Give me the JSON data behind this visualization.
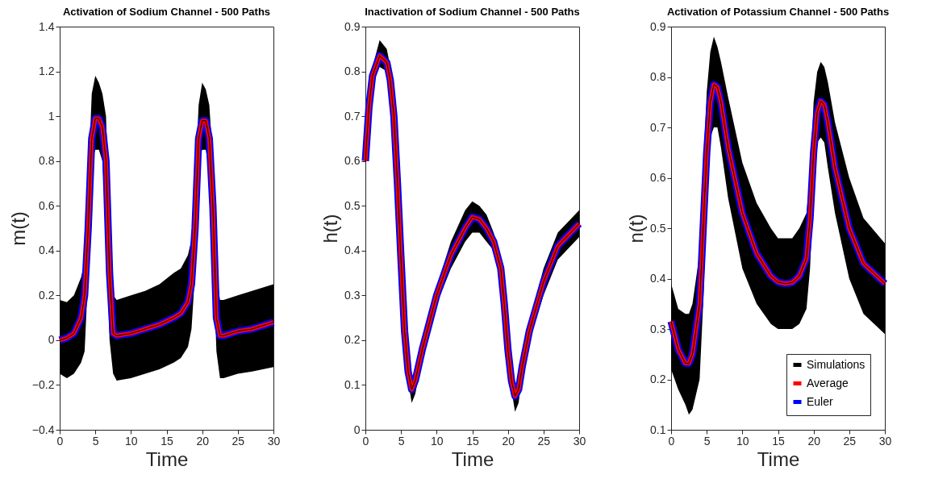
{
  "chart_data": [
    {
      "type": "line",
      "title": "Activation of Sodium Channel - 500 Paths",
      "xlabel": "Time",
      "ylabel": "m(t)",
      "x": [
        0,
        1,
        2,
        3,
        3.5,
        4,
        4.5,
        5,
        5.5,
        6,
        6.5,
        7,
        7.5,
        8,
        10,
        12,
        14,
        16,
        17,
        18,
        18.5,
        19,
        19.5,
        20,
        20.5,
        21,
        21.5,
        22,
        22.5,
        23,
        25,
        27,
        30
      ],
      "xlim": [
        0,
        30
      ],
      "xticks": [
        0,
        5,
        10,
        15,
        20,
        25,
        30
      ],
      "ylim": [
        -0.4,
        1.4
      ],
      "yticks": [
        -0.4,
        -0.2,
        0,
        0.2,
        0.4,
        0.6,
        0.8,
        1,
        1.2,
        1.4
      ],
      "grid": false,
      "legend": false,
      "series": [
        {
          "color": "#000000",
          "values": [
            0,
            0.01,
            0.03,
            0.1,
            0.2,
            0.5,
            0.9,
            0.99,
            0.99,
            0.95,
            0.8,
            0.3,
            0.03,
            0.02,
            0.03,
            0.05,
            0.07,
            0.1,
            0.12,
            0.17,
            0.25,
            0.5,
            0.9,
            0.98,
            0.98,
            0.9,
            0.6,
            0.1,
            0.02,
            0.02,
            0.04,
            0.05,
            0.08
          ],
          "lower": [
            -0.15,
            -0.17,
            -0.15,
            -0.1,
            -0.05,
            0.3,
            0.8,
            0.85,
            0.85,
            0.8,
            0.5,
            0,
            -0.15,
            -0.18,
            -0.17,
            -0.15,
            -0.13,
            -0.1,
            -0.08,
            -0.03,
            0.05,
            0.3,
            0.8,
            0.85,
            0.85,
            0.75,
            0.4,
            -0.05,
            -0.17,
            -0.17,
            -0.15,
            -0.14,
            -0.12
          ],
          "upper": [
            0.18,
            0.17,
            0.2,
            0.28,
            0.35,
            0.7,
            1.1,
            1.18,
            1.15,
            1.1,
            1,
            0.5,
            0.2,
            0.18,
            0.2,
            0.22,
            0.25,
            0.3,
            0.32,
            0.38,
            0.45,
            0.7,
            1.05,
            1.15,
            1.12,
            1.05,
            0.8,
            0.3,
            0.18,
            0.18,
            0.2,
            0.22,
            0.25
          ]
        },
        {
          "color": "#ff0000",
          "values": [
            0,
            0.01,
            0.03,
            0.1,
            0.2,
            0.5,
            0.9,
            0.99,
            0.99,
            0.95,
            0.8,
            0.3,
            0.03,
            0.02,
            0.03,
            0.05,
            0.07,
            0.1,
            0.12,
            0.17,
            0.25,
            0.5,
            0.9,
            0.98,
            0.98,
            0.9,
            0.6,
            0.1,
            0.02,
            0.02,
            0.04,
            0.05,
            0.08
          ]
        },
        {
          "color": "#0000ff",
          "values": [
            0,
            0.01,
            0.03,
            0.1,
            0.2,
            0.5,
            0.9,
            0.99,
            0.99,
            0.95,
            0.8,
            0.3,
            0.03,
            0.02,
            0.03,
            0.05,
            0.07,
            0.1,
            0.12,
            0.17,
            0.25,
            0.5,
            0.9,
            0.98,
            0.98,
            0.9,
            0.6,
            0.1,
            0.02,
            0.02,
            0.04,
            0.05,
            0.08
          ]
        }
      ]
    },
    {
      "type": "line",
      "title": "Inactivation of Sodium Channel - 500 Paths",
      "xlabel": "Time",
      "ylabel": "h(t)",
      "x": [
        0,
        0.5,
        1,
        2,
        3,
        3.5,
        4,
        4.5,
        5,
        5.5,
        6,
        6.5,
        7,
        8,
        10,
        12,
        14,
        15,
        16,
        17,
        18,
        19,
        19.5,
        20,
        20.5,
        21,
        21.5,
        22,
        23,
        25,
        27,
        30
      ],
      "xlim": [
        0,
        30
      ],
      "xticks": [
        0,
        5,
        10,
        15,
        20,
        25,
        30
      ],
      "ylim": [
        0,
        0.9
      ],
      "yticks": [
        0,
        0.1,
        0.2,
        0.3,
        0.4,
        0.5,
        0.6,
        0.7,
        0.8,
        0.9
      ],
      "grid": false,
      "legend": false,
      "series": [
        {
          "color": "#000000",
          "values": [
            0.6,
            0.72,
            0.79,
            0.835,
            0.82,
            0.78,
            0.7,
            0.55,
            0.38,
            0.22,
            0.13,
            0.09,
            0.11,
            0.18,
            0.3,
            0.39,
            0.45,
            0.475,
            0.47,
            0.45,
            0.42,
            0.36,
            0.28,
            0.18,
            0.11,
            0.075,
            0.09,
            0.14,
            0.22,
            0.33,
            0.41,
            0.46
          ],
          "lower": [
            0.59,
            0.7,
            0.77,
            0.81,
            0.8,
            0.76,
            0.68,
            0.53,
            0.36,
            0.2,
            0.11,
            0.06,
            0.08,
            0.16,
            0.28,
            0.36,
            0.42,
            0.44,
            0.44,
            0.42,
            0.4,
            0.34,
            0.26,
            0.16,
            0.09,
            0.04,
            0.06,
            0.12,
            0.2,
            0.3,
            0.38,
            0.43
          ],
          "upper": [
            0.61,
            0.74,
            0.81,
            0.87,
            0.85,
            0.81,
            0.72,
            0.57,
            0.4,
            0.24,
            0.15,
            0.11,
            0.13,
            0.2,
            0.32,
            0.42,
            0.49,
            0.51,
            0.5,
            0.48,
            0.44,
            0.38,
            0.3,
            0.2,
            0.13,
            0.1,
            0.11,
            0.16,
            0.24,
            0.36,
            0.44,
            0.49
          ]
        },
        {
          "color": "#ff0000",
          "values": [
            0.6,
            0.72,
            0.79,
            0.835,
            0.82,
            0.78,
            0.7,
            0.55,
            0.38,
            0.22,
            0.13,
            0.09,
            0.11,
            0.18,
            0.3,
            0.39,
            0.45,
            0.475,
            0.47,
            0.45,
            0.42,
            0.36,
            0.28,
            0.18,
            0.11,
            0.075,
            0.09,
            0.14,
            0.22,
            0.33,
            0.41,
            0.46
          ]
        },
        {
          "color": "#0000ff",
          "values": [
            0.6,
            0.72,
            0.79,
            0.835,
            0.82,
            0.78,
            0.7,
            0.55,
            0.38,
            0.22,
            0.13,
            0.09,
            0.11,
            0.18,
            0.3,
            0.39,
            0.45,
            0.475,
            0.47,
            0.45,
            0.42,
            0.36,
            0.28,
            0.18,
            0.11,
            0.075,
            0.09,
            0.14,
            0.22,
            0.33,
            0.41,
            0.46
          ]
        }
      ]
    },
    {
      "type": "line",
      "title": "Activation of Potassium Channel - 500 Paths",
      "xlabel": "Time",
      "ylabel": "n(t)",
      "x": [
        0,
        1,
        2,
        2.5,
        3,
        4,
        4.5,
        5,
        5.5,
        6,
        6.5,
        7,
        8,
        10,
        12,
        14,
        15,
        16,
        17,
        18,
        19,
        19.5,
        20,
        20.5,
        21,
        21.5,
        22,
        23,
        25,
        27,
        30
      ],
      "xlim": [
        0,
        30
      ],
      "xticks": [
        0,
        5,
        10,
        15,
        20,
        25,
        30
      ],
      "ylim": [
        0.1,
        0.9
      ],
      "yticks": [
        0.1,
        0.2,
        0.3,
        0.4,
        0.5,
        0.6,
        0.7,
        0.8,
        0.9
      ],
      "grid": false,
      "legend": "bottom right",
      "series": [
        {
          "name": "Simulations",
          "color": "#000000",
          "values": [
            0.315,
            0.26,
            0.232,
            0.232,
            0.25,
            0.35,
            0.5,
            0.65,
            0.75,
            0.785,
            0.78,
            0.75,
            0.66,
            0.53,
            0.45,
            0.405,
            0.393,
            0.39,
            0.392,
            0.405,
            0.44,
            0.52,
            0.65,
            0.73,
            0.752,
            0.745,
            0.71,
            0.62,
            0.5,
            0.43,
            0.39
          ],
          "lower": [
            0.22,
            0.18,
            0.15,
            0.13,
            0.14,
            0.2,
            0.35,
            0.55,
            0.68,
            0.7,
            0.7,
            0.66,
            0.56,
            0.42,
            0.35,
            0.31,
            0.3,
            0.3,
            0.3,
            0.31,
            0.34,
            0.42,
            0.58,
            0.67,
            0.68,
            0.67,
            0.62,
            0.53,
            0.4,
            0.33,
            0.29
          ],
          "upper": [
            0.39,
            0.34,
            0.33,
            0.33,
            0.35,
            0.45,
            0.62,
            0.77,
            0.85,
            0.88,
            0.86,
            0.83,
            0.76,
            0.63,
            0.55,
            0.5,
            0.48,
            0.48,
            0.48,
            0.5,
            0.53,
            0.6,
            0.75,
            0.81,
            0.83,
            0.82,
            0.79,
            0.71,
            0.6,
            0.52,
            0.47
          ]
        },
        {
          "name": "Average",
          "color": "#ff0000",
          "values": [
            0.315,
            0.26,
            0.232,
            0.232,
            0.25,
            0.35,
            0.5,
            0.65,
            0.75,
            0.785,
            0.78,
            0.75,
            0.66,
            0.53,
            0.45,
            0.405,
            0.393,
            0.39,
            0.392,
            0.405,
            0.44,
            0.52,
            0.65,
            0.73,
            0.752,
            0.745,
            0.71,
            0.62,
            0.5,
            0.43,
            0.39
          ]
        },
        {
          "name": "Euler",
          "color": "#0000ff",
          "values": [
            0.315,
            0.26,
            0.232,
            0.232,
            0.25,
            0.35,
            0.5,
            0.65,
            0.75,
            0.785,
            0.78,
            0.75,
            0.66,
            0.53,
            0.45,
            0.405,
            0.393,
            0.39,
            0.392,
            0.405,
            0.44,
            0.52,
            0.65,
            0.73,
            0.752,
            0.745,
            0.71,
            0.62,
            0.5,
            0.43,
            0.39
          ]
        }
      ]
    }
  ]
}
